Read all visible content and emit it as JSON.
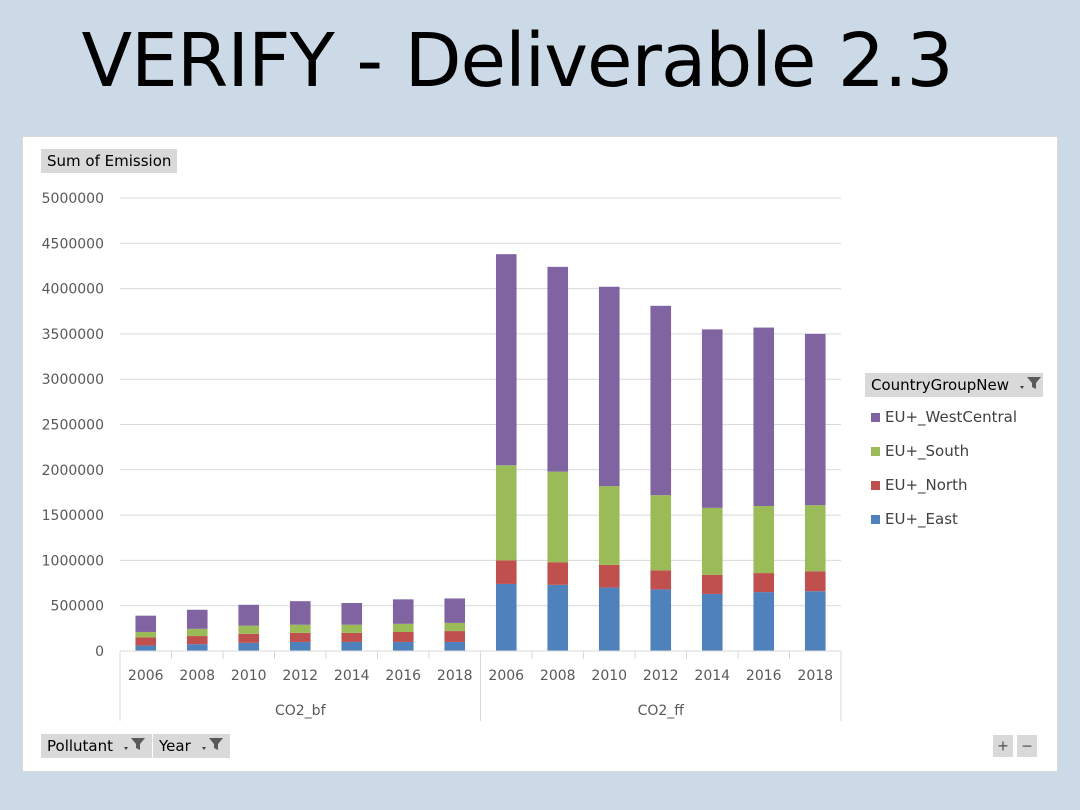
{
  "slide": {
    "title": "VERIFY - Deliverable 2.3"
  },
  "pivot": {
    "value_field": "Sum of Emission",
    "legend_field": "CountryGroupNew",
    "axis_fields": [
      "Pollutant",
      "Year"
    ]
  },
  "colors": {
    "EU+_East": "#4f81bd",
    "EU+_North": "#c0504d",
    "EU+_South": "#9bbb59",
    "EU+_WestCentral": "#8064a2"
  },
  "chart_data": {
    "type": "bar",
    "stacked": true,
    "yticks": [
      "5000000",
      "4500000",
      "4000000",
      "3500000",
      "3000000",
      "2500000",
      "2000000",
      "1500000",
      "1000000",
      "500000",
      "0"
    ],
    "ylim": [
      0,
      5000000
    ],
    "grid": true,
    "legend_position": "right",
    "groups": [
      {
        "name": "CO2_bf",
        "categories": [
          "2006",
          "2008",
          "2010",
          "2012",
          "2014",
          "2016",
          "2018"
        ]
      },
      {
        "name": "CO2_ff",
        "categories": [
          "2006",
          "2008",
          "2010",
          "2012",
          "2014",
          "2016",
          "2018"
        ]
      }
    ],
    "legend_order": [
      "EU+_WestCentral",
      "EU+_South",
      "EU+_North",
      "EU+_East"
    ],
    "series": [
      {
        "name": "EU+_East",
        "values": [
          60000,
          75000,
          90000,
          100000,
          100000,
          100000,
          100000,
          740000,
          730000,
          700000,
          680000,
          630000,
          650000,
          660000
        ]
      },
      {
        "name": "EU+_North",
        "values": [
          90000,
          90000,
          100000,
          100000,
          100000,
          110000,
          120000,
          260000,
          250000,
          250000,
          210000,
          210000,
          210000,
          220000
        ]
      },
      {
        "name": "EU+_South",
        "values": [
          60000,
          80000,
          90000,
          90000,
          90000,
          90000,
          90000,
          1050000,
          1000000,
          870000,
          830000,
          740000,
          740000,
          730000
        ]
      },
      {
        "name": "EU+_WestCentral",
        "values": [
          180000,
          210000,
          230000,
          260000,
          240000,
          270000,
          270000,
          2330000,
          2260000,
          2200000,
          2090000,
          1970000,
          1970000,
          1890000
        ]
      }
    ]
  },
  "controls": {
    "zoom_in": "+",
    "zoom_out": "−"
  }
}
